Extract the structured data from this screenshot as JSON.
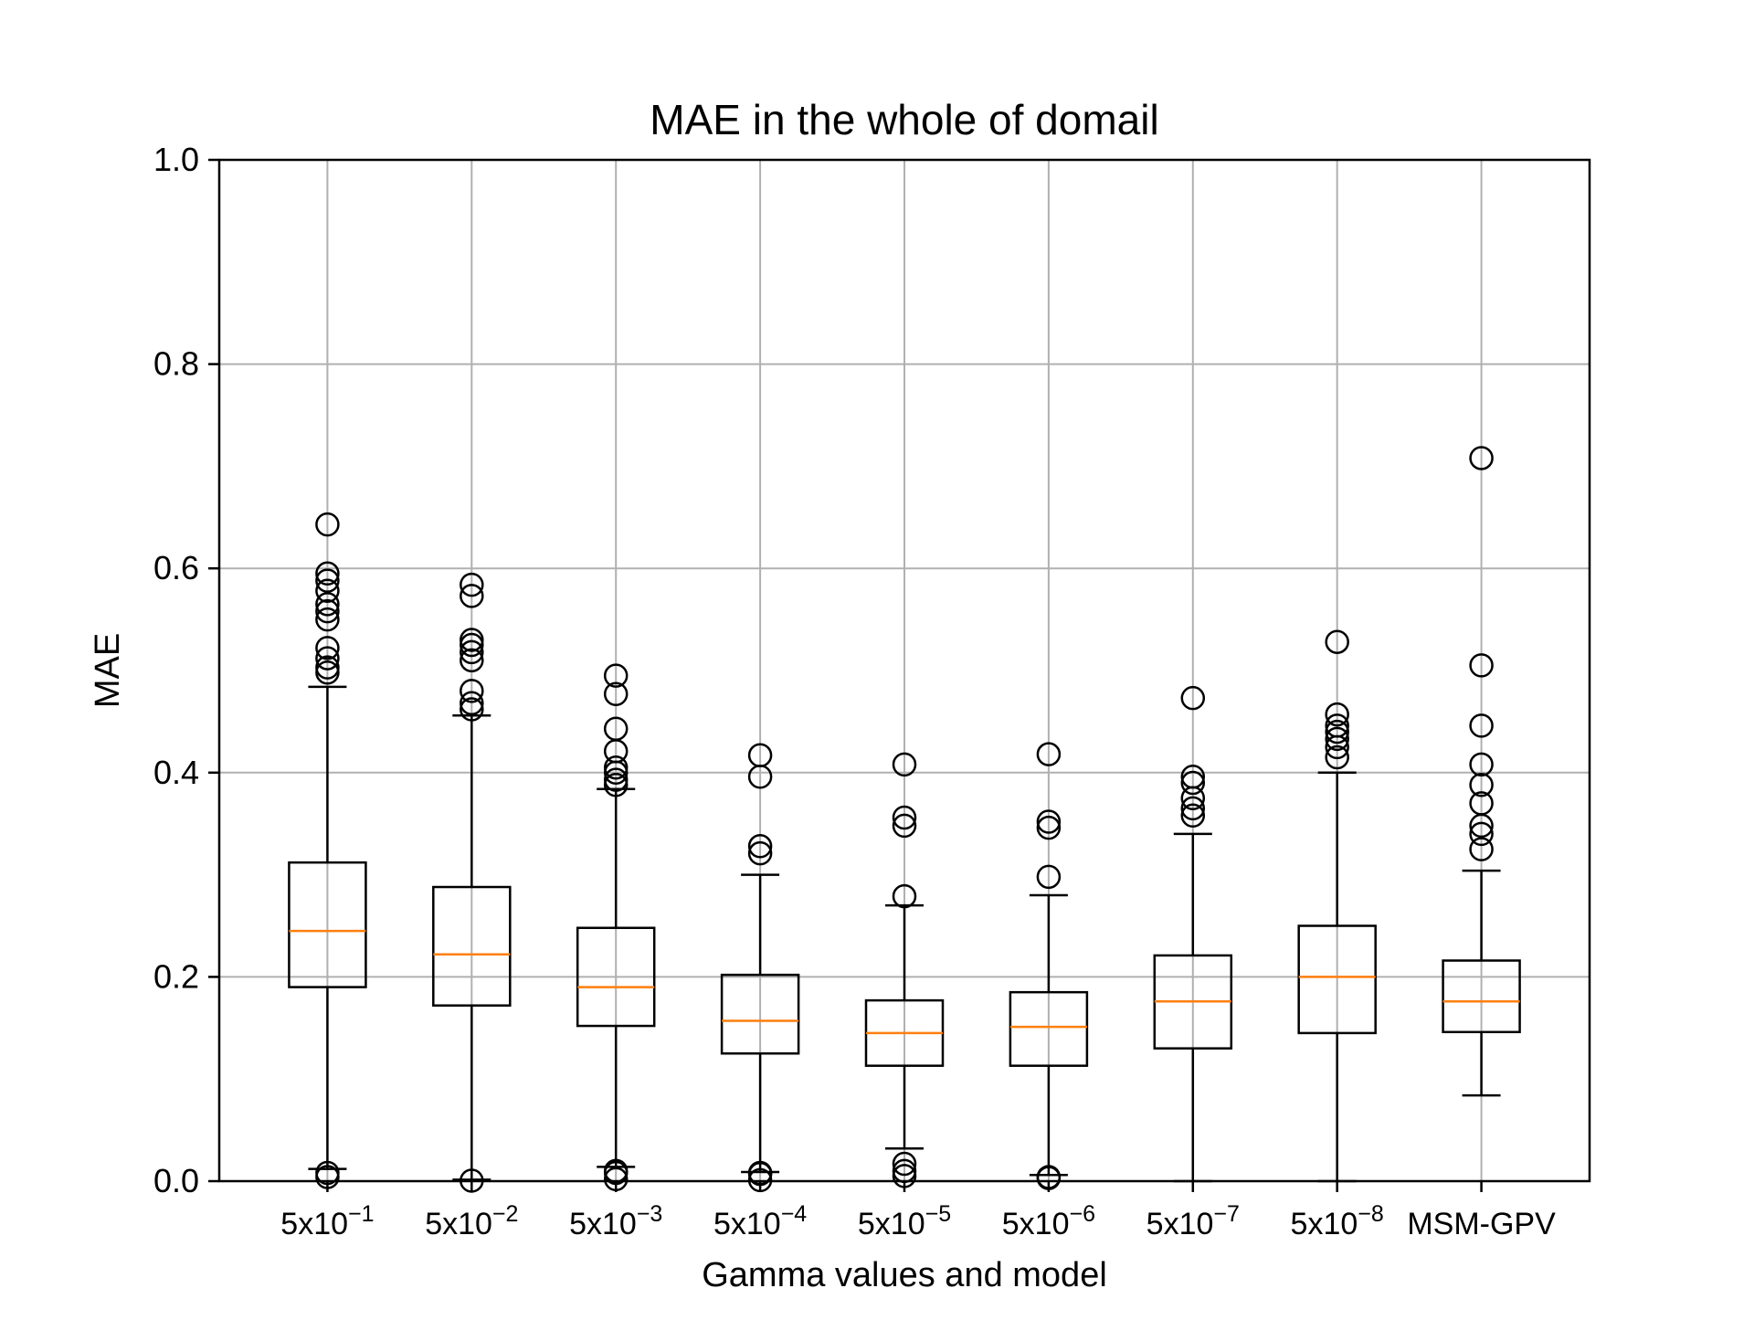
{
  "chart_data": {
    "type": "box",
    "title": "MAE in the whole of domail",
    "xlabel": "Gamma values and model",
    "ylabel": "MAE",
    "ylim": [
      0,
      1
    ],
    "yticks": [
      "0.0",
      "0.2",
      "0.4",
      "0.6",
      "0.8",
      "1.0"
    ],
    "grid": true,
    "categories": [
      {
        "base": "5x10",
        "exp": "−1"
      },
      {
        "base": "5x10",
        "exp": "−2"
      },
      {
        "base": "5x10",
        "exp": "−3"
      },
      {
        "base": "5x10",
        "exp": "−4"
      },
      {
        "base": "5x10",
        "exp": "−5"
      },
      {
        "base": "5x10",
        "exp": "−6"
      },
      {
        "base": "5x10",
        "exp": "−7"
      },
      {
        "base": "5x10",
        "exp": "−8"
      },
      {
        "base": "MSM-GPV",
        "exp": ""
      }
    ],
    "boxes": [
      {
        "whislo": 0.012,
        "q1": 0.19,
        "med": 0.245,
        "q3": 0.312,
        "whishi": 0.484,
        "fliers": [
          0.643,
          0.595,
          0.588,
          0.578,
          0.565,
          0.558,
          0.55,
          0.522,
          0.512,
          0.503,
          0.498,
          0.008,
          0.004
        ]
      },
      {
        "whislo": 0.0015,
        "q1": 0.172,
        "med": 0.222,
        "q3": 0.288,
        "whishi": 0.456,
        "fliers": [
          0.584,
          0.573,
          0.53,
          0.525,
          0.518,
          0.51,
          0.48,
          0.468,
          0.462,
          0.0005
        ]
      },
      {
        "whislo": 0.014,
        "q1": 0.152,
        "med": 0.19,
        "q3": 0.248,
        "whishi": 0.384,
        "fliers": [
          0.495,
          0.477,
          0.443,
          0.421,
          0.405,
          0.4,
          0.393,
          0.388,
          0.01,
          0.008,
          0.002
        ]
      },
      {
        "whislo": 0.009,
        "q1": 0.125,
        "med": 0.157,
        "q3": 0.202,
        "whishi": 0.3,
        "fliers": [
          0.417,
          0.396,
          0.328,
          0.321,
          0.008,
          0.007,
          0.001
        ]
      },
      {
        "whislo": 0.032,
        "q1": 0.113,
        "med": 0.145,
        "q3": 0.177,
        "whishi": 0.27,
        "fliers": [
          0.408,
          0.356,
          0.348,
          0.279,
          0.017,
          0.01,
          0.005
        ]
      },
      {
        "whislo": 0.006,
        "q1": 0.113,
        "med": 0.151,
        "q3": 0.185,
        "whishi": 0.28,
        "fliers": [
          0.418,
          0.352,
          0.346,
          0.298,
          0.004,
          0.003
        ]
      },
      {
        "whislo": 0.0,
        "q1": 0.13,
        "med": 0.176,
        "q3": 0.221,
        "whishi": 0.34,
        "fliers": [
          0.473,
          0.396,
          0.39,
          0.375,
          0.365,
          0.358
        ]
      },
      {
        "whislo": 0.0,
        "q1": 0.145,
        "med": 0.2,
        "q3": 0.25,
        "whishi": 0.4,
        "fliers": [
          0.528,
          0.457,
          0.446,
          0.44,
          0.433,
          0.425,
          0.415
        ]
      },
      {
        "whislo": 0.084,
        "q1": 0.146,
        "med": 0.176,
        "q3": 0.216,
        "whishi": 0.304,
        "fliers": [
          0.708,
          0.505,
          0.446,
          0.408,
          0.388,
          0.37,
          0.348,
          0.34,
          0.325
        ]
      }
    ],
    "colors": {
      "box": "#000000",
      "median": "#ff7f0e",
      "grid": "#b0b0b0"
    }
  }
}
